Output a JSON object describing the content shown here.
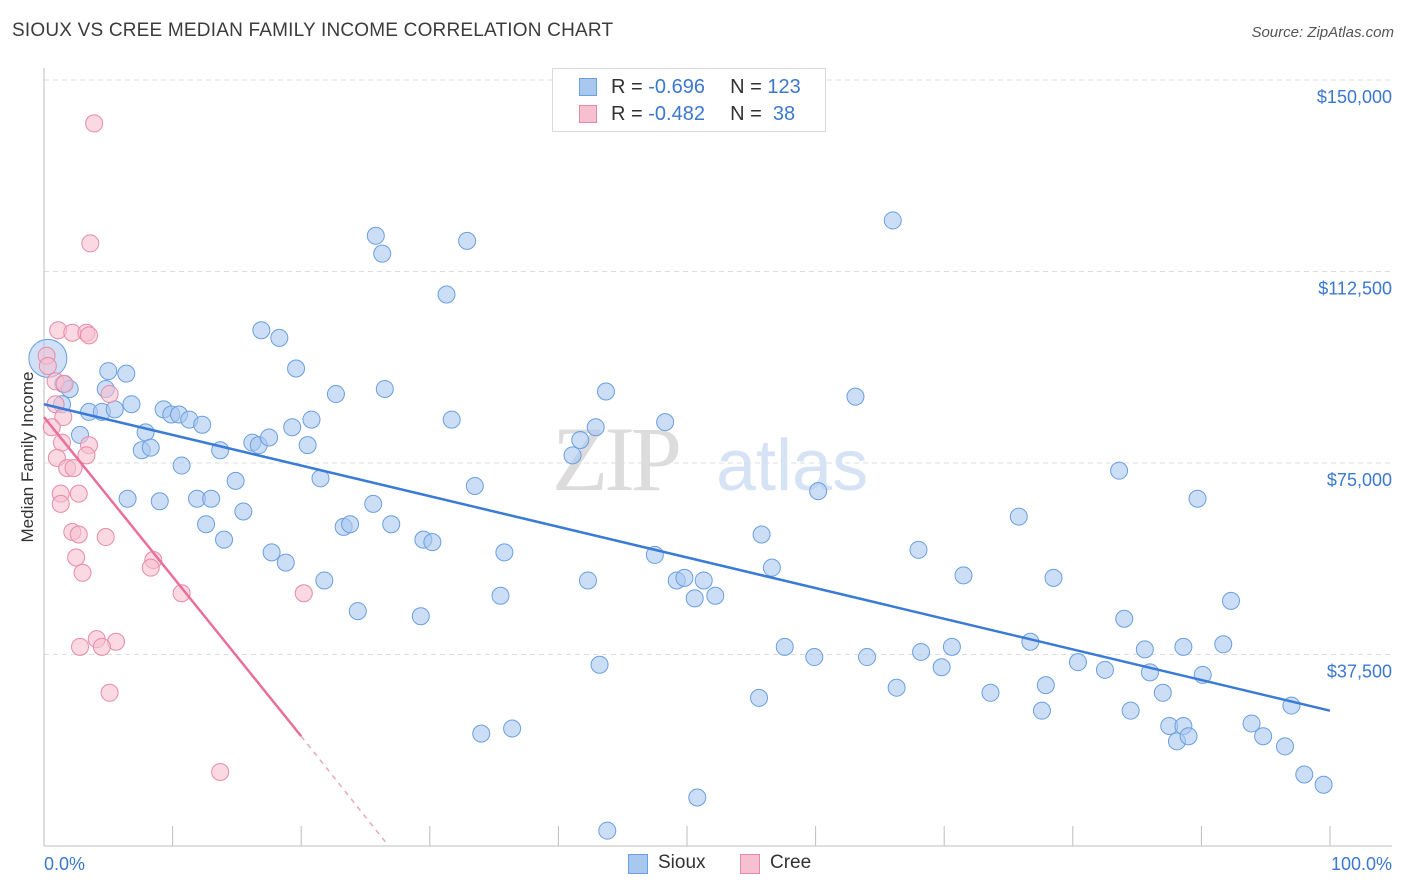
{
  "title": "SIOUX VS CREE MEDIAN FAMILY INCOME CORRELATION CHART",
  "source": "Source: ZipAtlas.com",
  "watermark": {
    "zip": "ZIP",
    "atlas": "atlas"
  },
  "legend": {
    "rows": [
      {
        "r_label": "R = ",
        "r_value": "-0.696",
        "n_label": "N = ",
        "n_value": "123",
        "color": "#a9c8f0",
        "border": "#6a9fe0"
      },
      {
        "r_label": "R = ",
        "r_value": "-0.482",
        "n_label": "N = ",
        "n_value": " 38",
        "color": "#f6c0d0",
        "border": "#e78aa8"
      }
    ]
  },
  "bottom_legend": [
    {
      "label": "Sioux",
      "color": "#a9c8f0",
      "border": "#6a9fe0"
    },
    {
      "label": "Cree",
      "color": "#f6c0d0",
      "border": "#e78aa8"
    }
  ],
  "chart_data": {
    "type": "scatter",
    "title": "SIOUX VS CREE MEDIAN FAMILY INCOME CORRELATION CHART",
    "xlabel": "",
    "ylabel": "Median Family Income",
    "xlim": [
      0,
      100
    ],
    "ylim": [
      0,
      150000
    ],
    "x_tick_labels": [
      "0.0%",
      "100.0%"
    ],
    "y_ticks": [
      37500,
      75000,
      112500,
      150000
    ],
    "y_tick_labels": [
      "$37,500",
      "$75,000",
      "$112,500",
      "$150,000"
    ],
    "grid": "horizontal dashed",
    "legend_placement": "top-center",
    "series": [
      {
        "name": "Sioux",
        "color": "#a9c8f0",
        "stroke": "#6a9fe0",
        "trend_color": "#3a7bd5",
        "trend": {
          "x0": 0,
          "y0": 86500,
          "x1": 100,
          "y1": 26500
        },
        "points": [
          [
            0.3,
            95500
          ],
          [
            1.5,
            90500
          ],
          [
            2.0,
            89500
          ],
          [
            1.4,
            86500
          ],
          [
            2.8,
            80500
          ],
          [
            3.5,
            85000
          ],
          [
            4.5,
            85000
          ],
          [
            4.8,
            89500
          ],
          [
            5.0,
            93000
          ],
          [
            5.5,
            85500
          ],
          [
            6.4,
            92500
          ],
          [
            6.5,
            68000
          ],
          [
            6.8,
            86500
          ],
          [
            7.6,
            77500
          ],
          [
            7.9,
            81000
          ],
          [
            8.3,
            78000
          ],
          [
            9.0,
            67500
          ],
          [
            9.3,
            85500
          ],
          [
            9.9,
            84500
          ],
          [
            10.5,
            84500
          ],
          [
            10.7,
            74500
          ],
          [
            11.3,
            83500
          ],
          [
            11.9,
            68000
          ],
          [
            12.3,
            82500
          ],
          [
            12.6,
            63000
          ],
          [
            13.0,
            68000
          ],
          [
            13.7,
            77500
          ],
          [
            14.0,
            60000
          ],
          [
            14.9,
            71500
          ],
          [
            15.5,
            65500
          ],
          [
            16.2,
            79000
          ],
          [
            16.7,
            78500
          ],
          [
            16.9,
            101000
          ],
          [
            17.5,
            80000
          ],
          [
            17.7,
            57500
          ],
          [
            18.3,
            99500
          ],
          [
            18.8,
            55500
          ],
          [
            19.3,
            82000
          ],
          [
            19.6,
            93500
          ],
          [
            20.5,
            78500
          ],
          [
            20.8,
            83500
          ],
          [
            21.5,
            72000
          ],
          [
            21.8,
            52000
          ],
          [
            22.7,
            88500
          ],
          [
            23.3,
            62500
          ],
          [
            23.8,
            63000
          ],
          [
            24.4,
            46000
          ],
          [
            25.6,
            67000
          ],
          [
            25.8,
            119500
          ],
          [
            26.3,
            116000
          ],
          [
            26.5,
            89500
          ],
          [
            27.0,
            63000
          ],
          [
            29.3,
            45000
          ],
          [
            29.5,
            60000
          ],
          [
            30.2,
            59500
          ],
          [
            31.3,
            108000
          ],
          [
            31.7,
            83500
          ],
          [
            32.9,
            118500
          ],
          [
            33.5,
            70500
          ],
          [
            34.0,
            22000
          ],
          [
            35.5,
            49000
          ],
          [
            35.8,
            57500
          ],
          [
            36.4,
            23000
          ],
          [
            41.1,
            76500
          ],
          [
            41.7,
            79500
          ],
          [
            42.3,
            52000
          ],
          [
            42.9,
            82000
          ],
          [
            43.2,
            35500
          ],
          [
            43.7,
            89000
          ],
          [
            43.8,
            3000
          ],
          [
            47.5,
            57000
          ],
          [
            48.3,
            83000
          ],
          [
            49.2,
            52000
          ],
          [
            49.8,
            52500
          ],
          [
            50.6,
            48500
          ],
          [
            50.8,
            9500
          ],
          [
            51.3,
            52000
          ],
          [
            52.2,
            49000
          ],
          [
            55.6,
            29000
          ],
          [
            55.8,
            61000
          ],
          [
            56.6,
            54500
          ],
          [
            57.6,
            39000
          ],
          [
            59.9,
            37000
          ],
          [
            60.2,
            69500
          ],
          [
            63.1,
            88000
          ],
          [
            64.0,
            37000
          ],
          [
            66.0,
            122500
          ],
          [
            66.3,
            31000
          ],
          [
            68.0,
            58000
          ],
          [
            68.2,
            38000
          ],
          [
            69.8,
            35000
          ],
          [
            70.6,
            39000
          ],
          [
            71.5,
            53000
          ],
          [
            73.6,
            30000
          ],
          [
            75.8,
            64500
          ],
          [
            76.7,
            40000
          ],
          [
            77.6,
            26500
          ],
          [
            77.9,
            31500
          ],
          [
            78.5,
            52500
          ],
          [
            80.4,
            36000
          ],
          [
            82.5,
            34500
          ],
          [
            83.6,
            73500
          ],
          [
            84.0,
            44500
          ],
          [
            84.5,
            26500
          ],
          [
            85.6,
            38500
          ],
          [
            86.0,
            34000
          ],
          [
            87.0,
            30000
          ],
          [
            87.5,
            23500
          ],
          [
            88.1,
            20500
          ],
          [
            88.6,
            23500
          ],
          [
            89.0,
            21500
          ],
          [
            88.6,
            39000
          ],
          [
            89.7,
            68000
          ],
          [
            90.1,
            33500
          ],
          [
            91.7,
            39500
          ],
          [
            92.3,
            48000
          ],
          [
            93.9,
            24000
          ],
          [
            94.8,
            21500
          ],
          [
            96.5,
            19500
          ],
          [
            97.0,
            27500
          ],
          [
            98.0,
            14000
          ],
          [
            99.5,
            12000
          ]
        ]
      },
      {
        "name": "Cree",
        "color": "#f6c0d0",
        "stroke": "#e78aa8",
        "trend_color": "#e8709a",
        "trend": {
          "x0": 0,
          "y0": 84000,
          "x1": 20.0,
          "y1": 21500
        },
        "trend_dash": {
          "x0": 20.0,
          "y0": 21500,
          "x1": 26.8,
          "y1": 0
        },
        "points": [
          [
            3.9,
            141500
          ],
          [
            3.6,
            118000
          ],
          [
            1.1,
            101000
          ],
          [
            2.2,
            100500
          ],
          [
            3.3,
            100500
          ],
          [
            3.5,
            100000
          ],
          [
            0.2,
            96000
          ],
          [
            0.9,
            91000
          ],
          [
            1.6,
            90500
          ],
          [
            5.1,
            88500
          ],
          [
            0.9,
            86500
          ],
          [
            1.5,
            84000
          ],
          [
            0.6,
            82000
          ],
          [
            1.4,
            79000
          ],
          [
            3.5,
            78500
          ],
          [
            3.3,
            76500
          ],
          [
            1.0,
            76000
          ],
          [
            1.8,
            74000
          ],
          [
            2.3,
            74000
          ],
          [
            1.3,
            69000
          ],
          [
            2.7,
            69000
          ],
          [
            1.3,
            67000
          ],
          [
            2.2,
            61500
          ],
          [
            2.7,
            61000
          ],
          [
            4.8,
            60500
          ],
          [
            2.5,
            56500
          ],
          [
            8.5,
            56000
          ],
          [
            8.3,
            54500
          ],
          [
            3.0,
            53500
          ],
          [
            10.7,
            49500
          ],
          [
            20.2,
            49500
          ],
          [
            4.1,
            40500
          ],
          [
            5.6,
            40000
          ],
          [
            2.8,
            39000
          ],
          [
            4.5,
            39000
          ],
          [
            5.1,
            30000
          ],
          [
            13.7,
            14500
          ],
          [
            0.3,
            94000
          ]
        ]
      }
    ]
  }
}
